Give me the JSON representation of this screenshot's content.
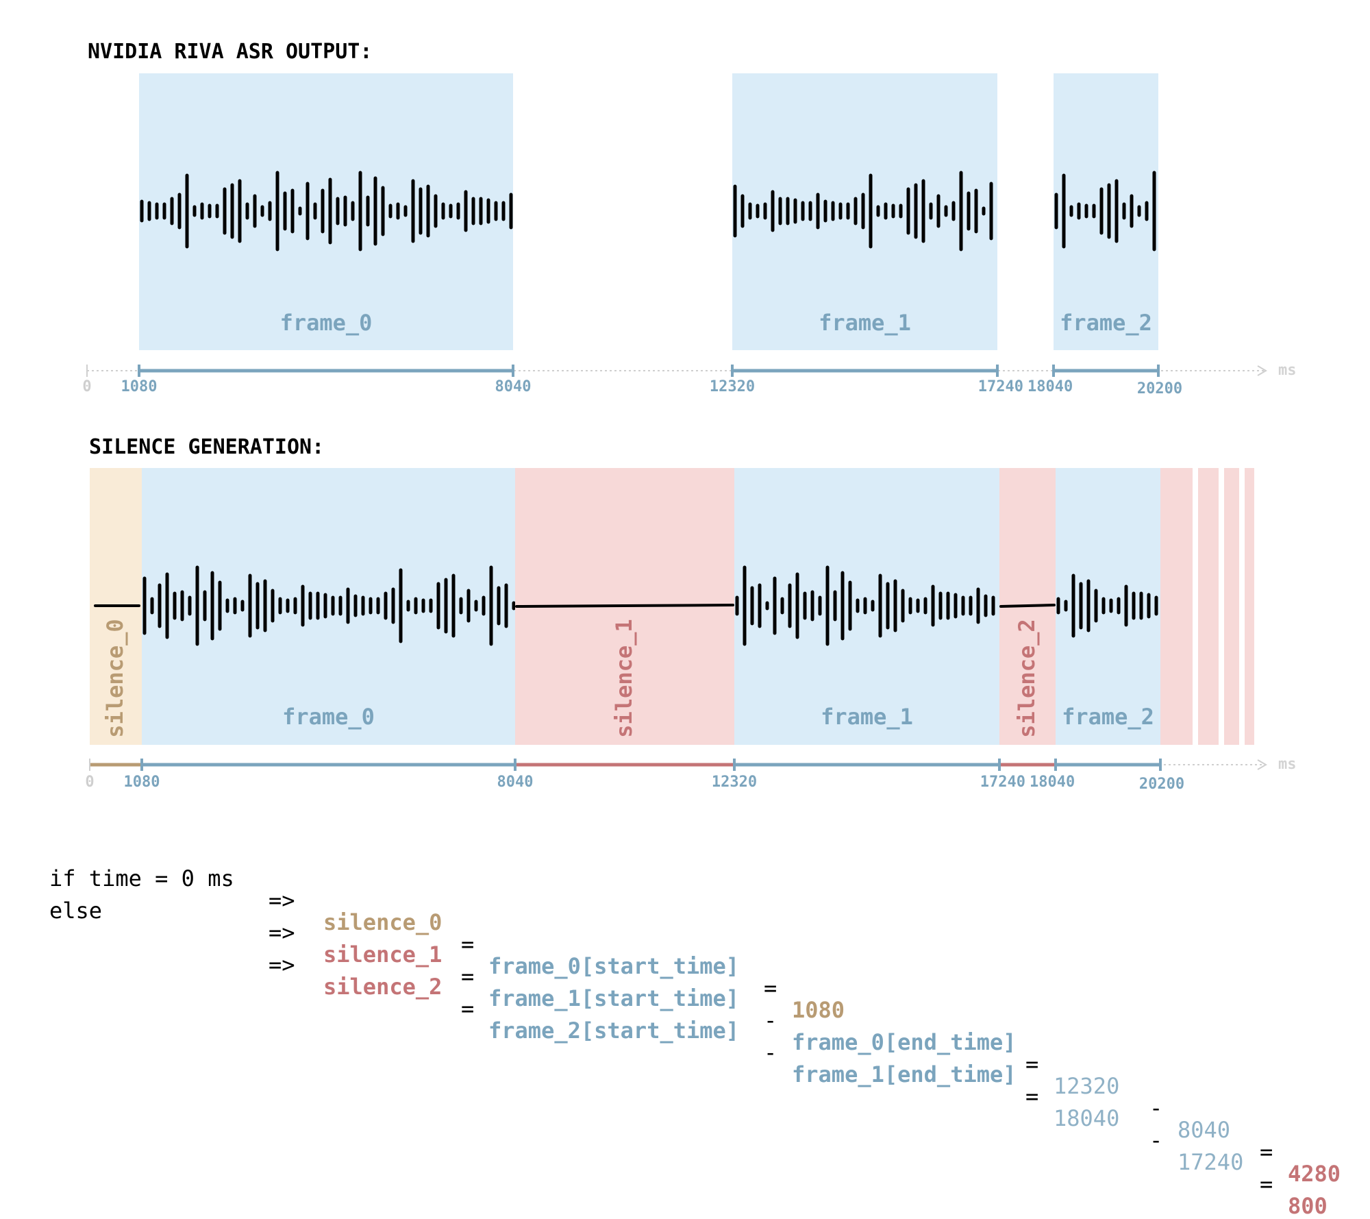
{
  "colors": {
    "frame_fill": "#daecf8",
    "frame_text": "#7ba4bd",
    "silence0_fill": "#f9ebd7",
    "silence0_text": "#b89b73",
    "silence_fill": "#f7d9d8",
    "silence_text": "#c47476",
    "axis_dotted": "#cfcfcf",
    "wave": "#000000"
  },
  "top_panel": {
    "title": "NVIDIA RIVA ASR OUTPUT:",
    "unit": "ms",
    "frames": [
      {
        "label": "frame_0",
        "start": 1080,
        "end": 8040
      },
      {
        "label": "frame_1",
        "start": 12320,
        "end": 17240
      },
      {
        "label": "frame_2",
        "start": 18040,
        "end": 20200
      }
    ],
    "ticks": [
      {
        "value": 0,
        "label": "0"
      },
      {
        "value": 1080,
        "label": "1080"
      },
      {
        "value": 8040,
        "label": "8040"
      },
      {
        "value": 12320,
        "label": "12320"
      },
      {
        "value": 17240,
        "label": "17240"
      },
      {
        "value": 18040,
        "label": "18040"
      },
      {
        "value": 20200,
        "label": "20200"
      }
    ]
  },
  "bottom_panel": {
    "title": "SILENCE GENERATION:",
    "unit": "ms",
    "segments": [
      {
        "kind": "silence0",
        "label": "silence_0",
        "start": 0,
        "end": 1080
      },
      {
        "kind": "frame",
        "label": "frame_0",
        "start": 1080,
        "end": 8040
      },
      {
        "kind": "silence",
        "label": "silence_1",
        "start": 8040,
        "end": 12320
      },
      {
        "kind": "frame",
        "label": "frame_1",
        "start": 12320,
        "end": 17240
      },
      {
        "kind": "silence",
        "label": "silence_2",
        "start": 17240,
        "end": 18040
      },
      {
        "kind": "frame",
        "label": "frame_2",
        "start": 18040,
        "end": 20200
      }
    ],
    "ticks": [
      {
        "value": 0,
        "label": "0"
      },
      {
        "value": 1080,
        "label": "1080"
      },
      {
        "value": 8040,
        "label": "8040"
      },
      {
        "value": 12320,
        "label": "12320"
      },
      {
        "value": 17240,
        "label": "17240"
      },
      {
        "value": 18040,
        "label": "18040"
      },
      {
        "value": 20200,
        "label": "20200"
      }
    ]
  },
  "formulas": [
    {
      "prefix": "if time = 0 ms",
      "arrow": "=>",
      "lhs": "silence_0",
      "eq1": "=",
      "term1": "frame_0[start_time]",
      "eq2": "=",
      "result": "1080"
    },
    {
      "prefix": "else",
      "arrow": "=>",
      "lhs": "silence_1",
      "eq1": "=",
      "term1": "frame_1[start_time]",
      "minus1": "-",
      "term2": "frame_0[end_time]",
      "eq2": "=",
      "num1": "12320",
      "minus2": "-",
      "num2": "8040",
      "eq3": "=",
      "result": "4280"
    },
    {
      "prefix": "",
      "arrow": "=>",
      "lhs": "silence_2",
      "eq1": "=",
      "term1": "frame_2[start_time]",
      "minus1": "-",
      "term2": "frame_1[end_time]",
      "eq2": "=",
      "num1": "18040",
      "minus2": "-",
      "num2": "17240",
      "eq3": "=",
      "result": "800"
    }
  ]
}
